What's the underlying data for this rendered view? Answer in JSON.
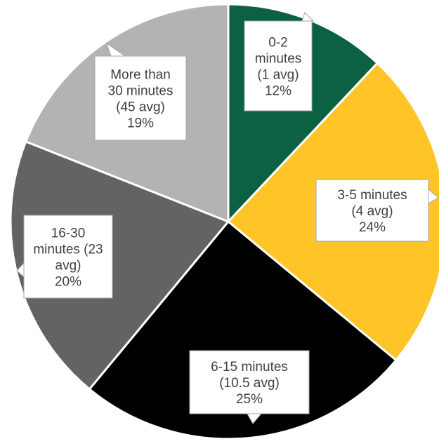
{
  "chart_data": {
    "type": "pie",
    "start_angle_deg": 0,
    "direction": "clockwise",
    "slices": [
      {
        "label_lines": [
          "0-2",
          "minutes",
          "(1 avg)",
          "12%"
        ],
        "value": 12,
        "color": "#0b6141"
      },
      {
        "label_lines": [
          "3-5 minutes",
          "(4 avg)",
          "24%"
        ],
        "value": 24,
        "color": "#ffc428"
      },
      {
        "label_lines": [
          "6-15 minutes",
          "(10.5 avg)",
          "25%"
        ],
        "value": 25,
        "color": "#000000"
      },
      {
        "label_lines": [
          "16-30",
          "minutes (23",
          "avg)",
          "20%"
        ],
        "value": 20,
        "color": "#636363"
      },
      {
        "label_lines": [
          "More than",
          "30 minutes",
          "(45 avg)",
          "19%"
        ],
        "value": 19,
        "color": "#b3b3b3"
      }
    ]
  }
}
